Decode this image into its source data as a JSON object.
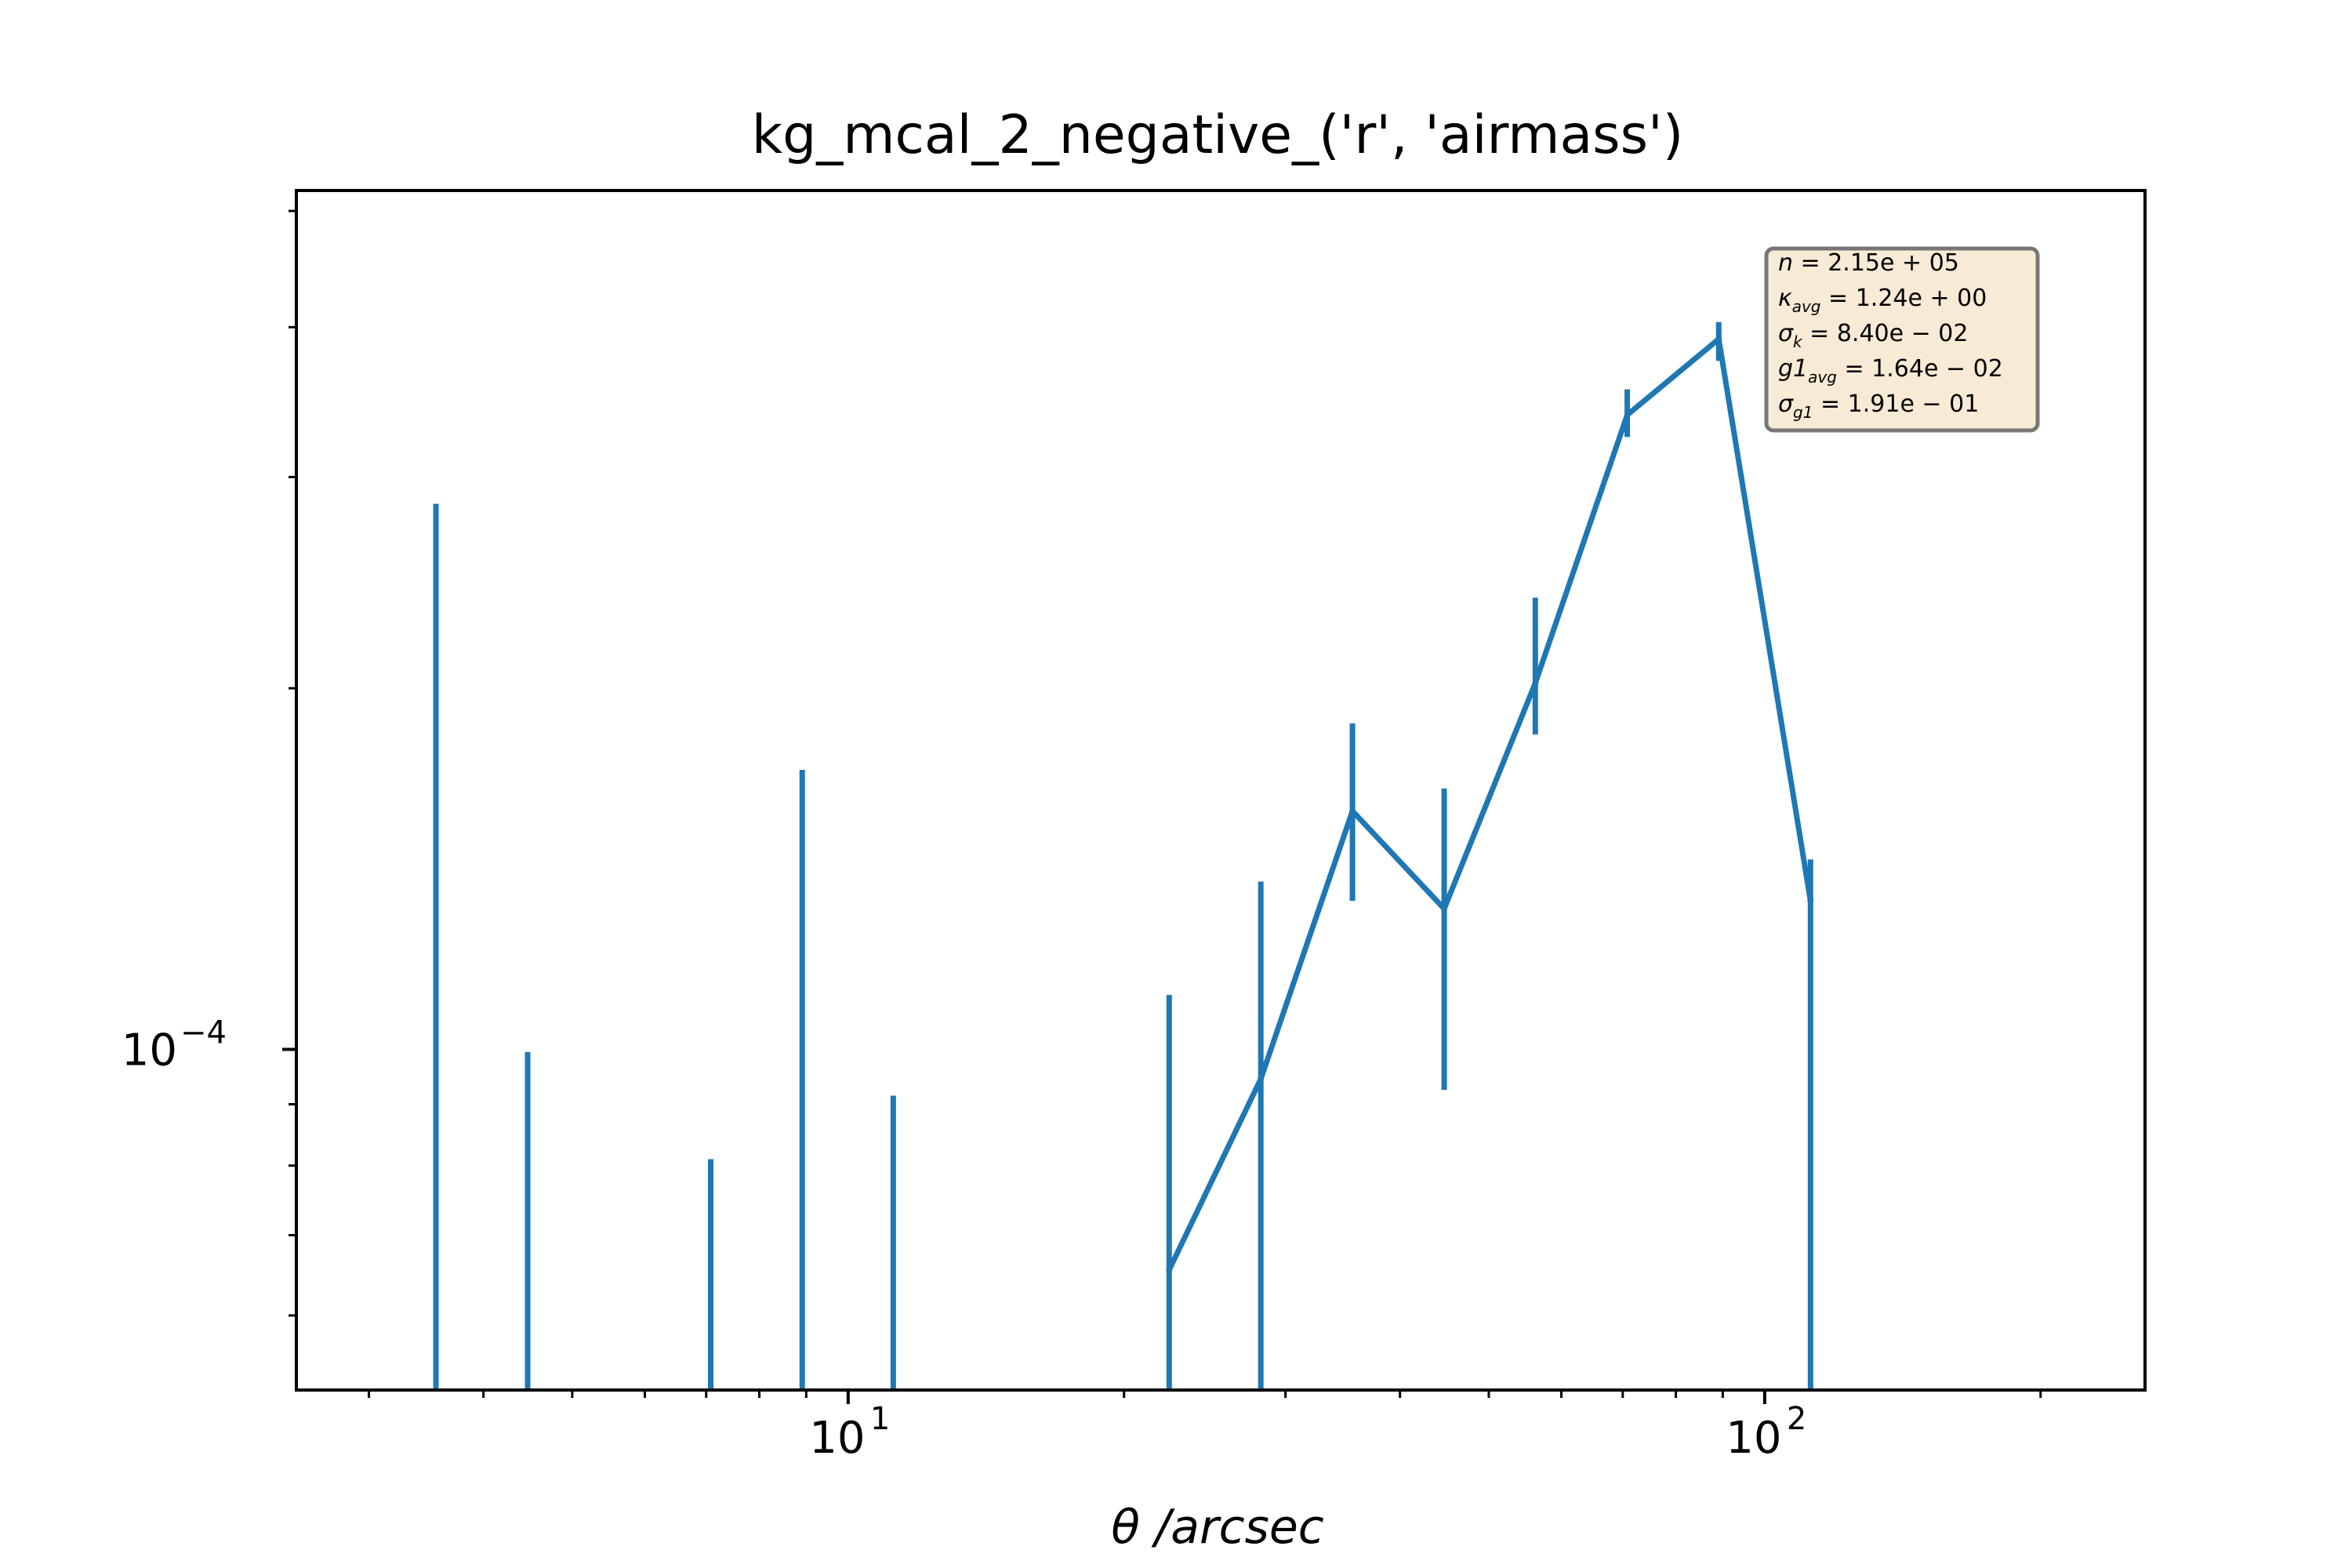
{
  "chart_data": {
    "type": "line",
    "title": "kg_mcal_2_negative_('r', 'airmass')",
    "xlabel": "θ /arcsec",
    "ylabel": "",
    "xscale": "log",
    "yscale": "log",
    "xlim": [
      2.5,
      260
    ],
    "ylim": [
      5.2e-05,
      0.00052
    ],
    "grid": false,
    "legend": "none",
    "x_ticks": [
      {
        "value": 10,
        "base": "10",
        "exp": "1"
      },
      {
        "value": 100,
        "base": "10",
        "exp": "2"
      }
    ],
    "y_ticks": [
      {
        "value": 0.0001,
        "base": "10",
        "exp": "−4"
      }
    ],
    "series": [
      {
        "color": "#1f77b4",
        "x": [
          22.4,
          28.2,
          35.5,
          44.7,
          56.2,
          70.8,
          89.1,
          112.2
        ],
        "y": [
          6.55e-05,
          9.45e-05,
          0.000158,
          0.000131,
          0.000202,
          0.000338,
          0.000391,
          0.000133
        ]
      }
    ],
    "errorbars": [
      {
        "x": 3.55,
        "lower": 5.2e-05,
        "upper": 0.000285
      },
      {
        "x": 4.47,
        "lower": 5.2e-05,
        "upper": 9.95e-05
      },
      {
        "x": 7.08,
        "lower": 5.2e-05,
        "upper": 8.1e-05
      },
      {
        "x": 8.91,
        "lower": 5.2e-05,
        "upper": 0.000171
      },
      {
        "x": 11.2,
        "lower": 5.2e-05,
        "upper": 9.15e-05
      },
      {
        "x": 22.4,
        "lower": 5.2e-05,
        "upper": 0.000111
      },
      {
        "x": 28.2,
        "lower": 5.2e-05,
        "upper": 0.000138
      },
      {
        "x": 35.5,
        "lower": 0.000133,
        "upper": 0.000187
      },
      {
        "x": 44.7,
        "lower": 9.25e-05,
        "upper": 0.000165
      },
      {
        "x": 56.2,
        "lower": 0.000183,
        "upper": 0.000238
      },
      {
        "x": 70.8,
        "lower": 0.000324,
        "upper": 0.000355
      },
      {
        "x": 89.1,
        "lower": 0.000375,
        "upper": 0.000404
      },
      {
        "x": 112.2,
        "lower": 5.2e-05,
        "upper": 0.000144
      }
    ],
    "stats_box": {
      "background": "#f7ebd6",
      "border": "#777777",
      "lines": [
        {
          "sym": "n",
          "sub": "",
          "value": " = 2.15e + 05"
        },
        {
          "sym": "κ",
          "sub": "avg",
          "value": " = 1.24e + 00"
        },
        {
          "sym": "σ",
          "sub": "k",
          "value": " = 8.40e − 02"
        },
        {
          "sym": "g1",
          "sub": "avg",
          "value": " = 1.64e − 02"
        },
        {
          "sym": "σ",
          "sub": "g1",
          "value": " = 1.91e − 01"
        }
      ]
    }
  }
}
